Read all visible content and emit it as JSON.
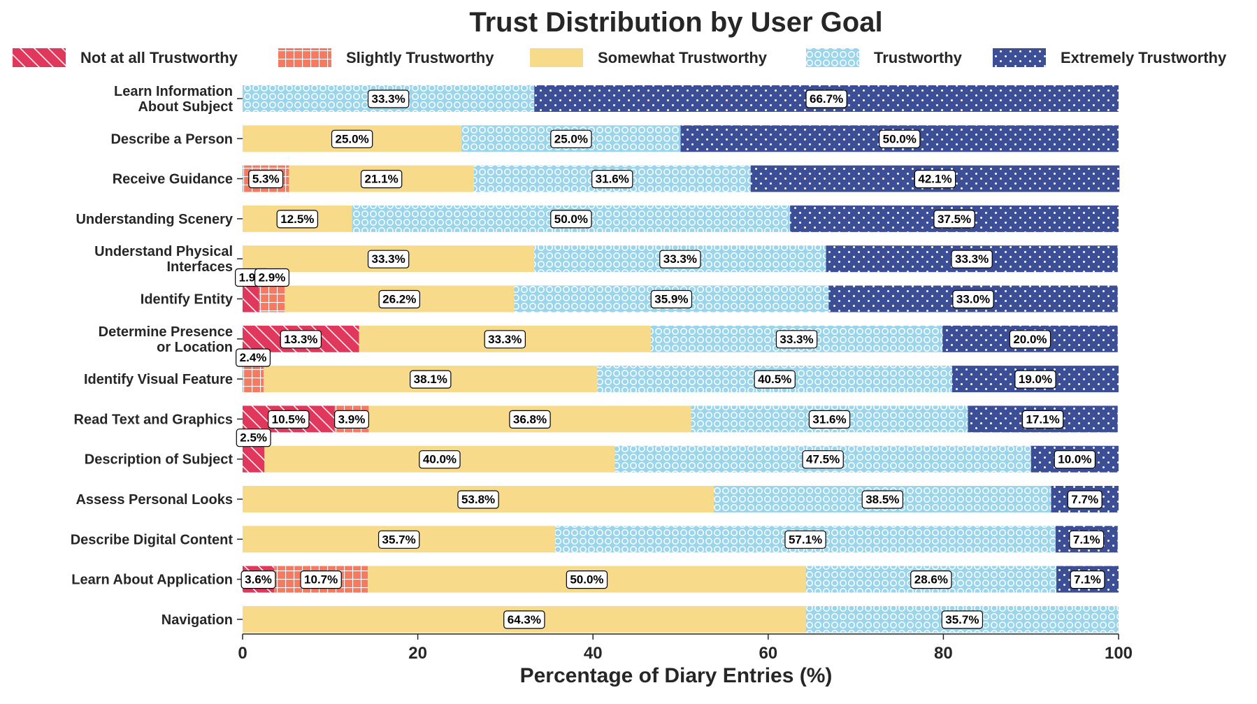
{
  "chart_data": {
    "type": "bar",
    "orientation": "horizontal",
    "stacked": true,
    "title": "Trust Distribution by User Goal",
    "xlabel": "Percentage of Diary Entries (%)",
    "ylabel": "",
    "xlim": [
      0,
      100
    ],
    "x_ticks": [
      "0",
      "20",
      "40",
      "60",
      "80",
      "100"
    ],
    "grid": false,
    "legend_position": "top",
    "categories": [
      [
        "Learn Information",
        "About Subject"
      ],
      [
        "Describe a Person"
      ],
      [
        "Receive Guidance"
      ],
      [
        "Understanding Scenery"
      ],
      [
        "Understand Physical",
        "Interfaces"
      ],
      [
        "Identify Entity"
      ],
      [
        "Determine Presence",
        "or Location"
      ],
      [
        "Identify Visual Feature"
      ],
      [
        "Read Text and Graphics"
      ],
      [
        "Description of Subject"
      ],
      [
        "Assess Personal Looks"
      ],
      [
        "Describe Digital Content"
      ],
      [
        "Learn About Application"
      ],
      [
        "Navigation"
      ]
    ],
    "series": [
      {
        "name": "Not at all Trustworthy",
        "color": "#E0375C",
        "pattern": "diagonal-hatch",
        "values": [
          0,
          0,
          0,
          0,
          0,
          1.9,
          13.3,
          0,
          10.5,
          2.5,
          0,
          0,
          3.6,
          0
        ],
        "labels": [
          "",
          "",
          "",
          "",
          "",
          "1.9%",
          "13.3%",
          "",
          "10.5%",
          "2.5%",
          "",
          "",
          "3.6%",
          ""
        ]
      },
      {
        "name": "Slightly Trustworthy",
        "color": "#F77A60",
        "pattern": "grid-hatch",
        "values": [
          0,
          0,
          5.3,
          0,
          0,
          2.9,
          0,
          2.4,
          3.9,
          0,
          0,
          0,
          10.7,
          0
        ],
        "labels": [
          "",
          "",
          "5.3%",
          "",
          "",
          "2.9%",
          "",
          "2.4%",
          "3.9%",
          "",
          "",
          "",
          "10.7%",
          ""
        ]
      },
      {
        "name": "Somewhat Trustworthy",
        "color": "#F7DA8A",
        "pattern": "solid",
        "values": [
          0,
          25.0,
          21.1,
          12.5,
          33.3,
          26.2,
          33.3,
          38.1,
          36.8,
          40.0,
          53.8,
          35.7,
          50.0,
          64.3
        ],
        "labels": [
          "",
          "25.0%",
          "21.1%",
          "12.5%",
          "33.3%",
          "26.2%",
          "33.3%",
          "38.1%",
          "36.8%",
          "40.0%",
          "53.8%",
          "35.7%",
          "50.0%",
          "64.3%"
        ]
      },
      {
        "name": "Trustworthy",
        "color": "#9AD5EC",
        "pattern": "circles",
        "values": [
          33.3,
          25.0,
          31.6,
          50.0,
          33.3,
          35.9,
          33.3,
          40.5,
          31.6,
          47.5,
          38.5,
          57.1,
          28.6,
          35.7
        ],
        "labels": [
          "33.3%",
          "25.0%",
          "31.6%",
          "50.0%",
          "33.3%",
          "35.9%",
          "33.3%",
          "40.5%",
          "31.6%",
          "47.5%",
          "38.5%",
          "57.1%",
          "28.6%",
          "35.7%"
        ]
      },
      {
        "name": "Extremely Trustworthy",
        "color": "#3C4F96",
        "pattern": "dots",
        "values": [
          66.7,
          50.0,
          42.1,
          37.5,
          33.3,
          33.0,
          20.0,
          19.0,
          17.1,
          10.0,
          7.7,
          7.1,
          7.1,
          0
        ],
        "labels": [
          "66.7%",
          "50.0%",
          "42.1%",
          "37.5%",
          "33.3%",
          "33.0%",
          "20.0%",
          "19.0%",
          "17.1%",
          "10.0%",
          "7.7%",
          "7.1%",
          "7.1%",
          ""
        ]
      }
    ]
  }
}
